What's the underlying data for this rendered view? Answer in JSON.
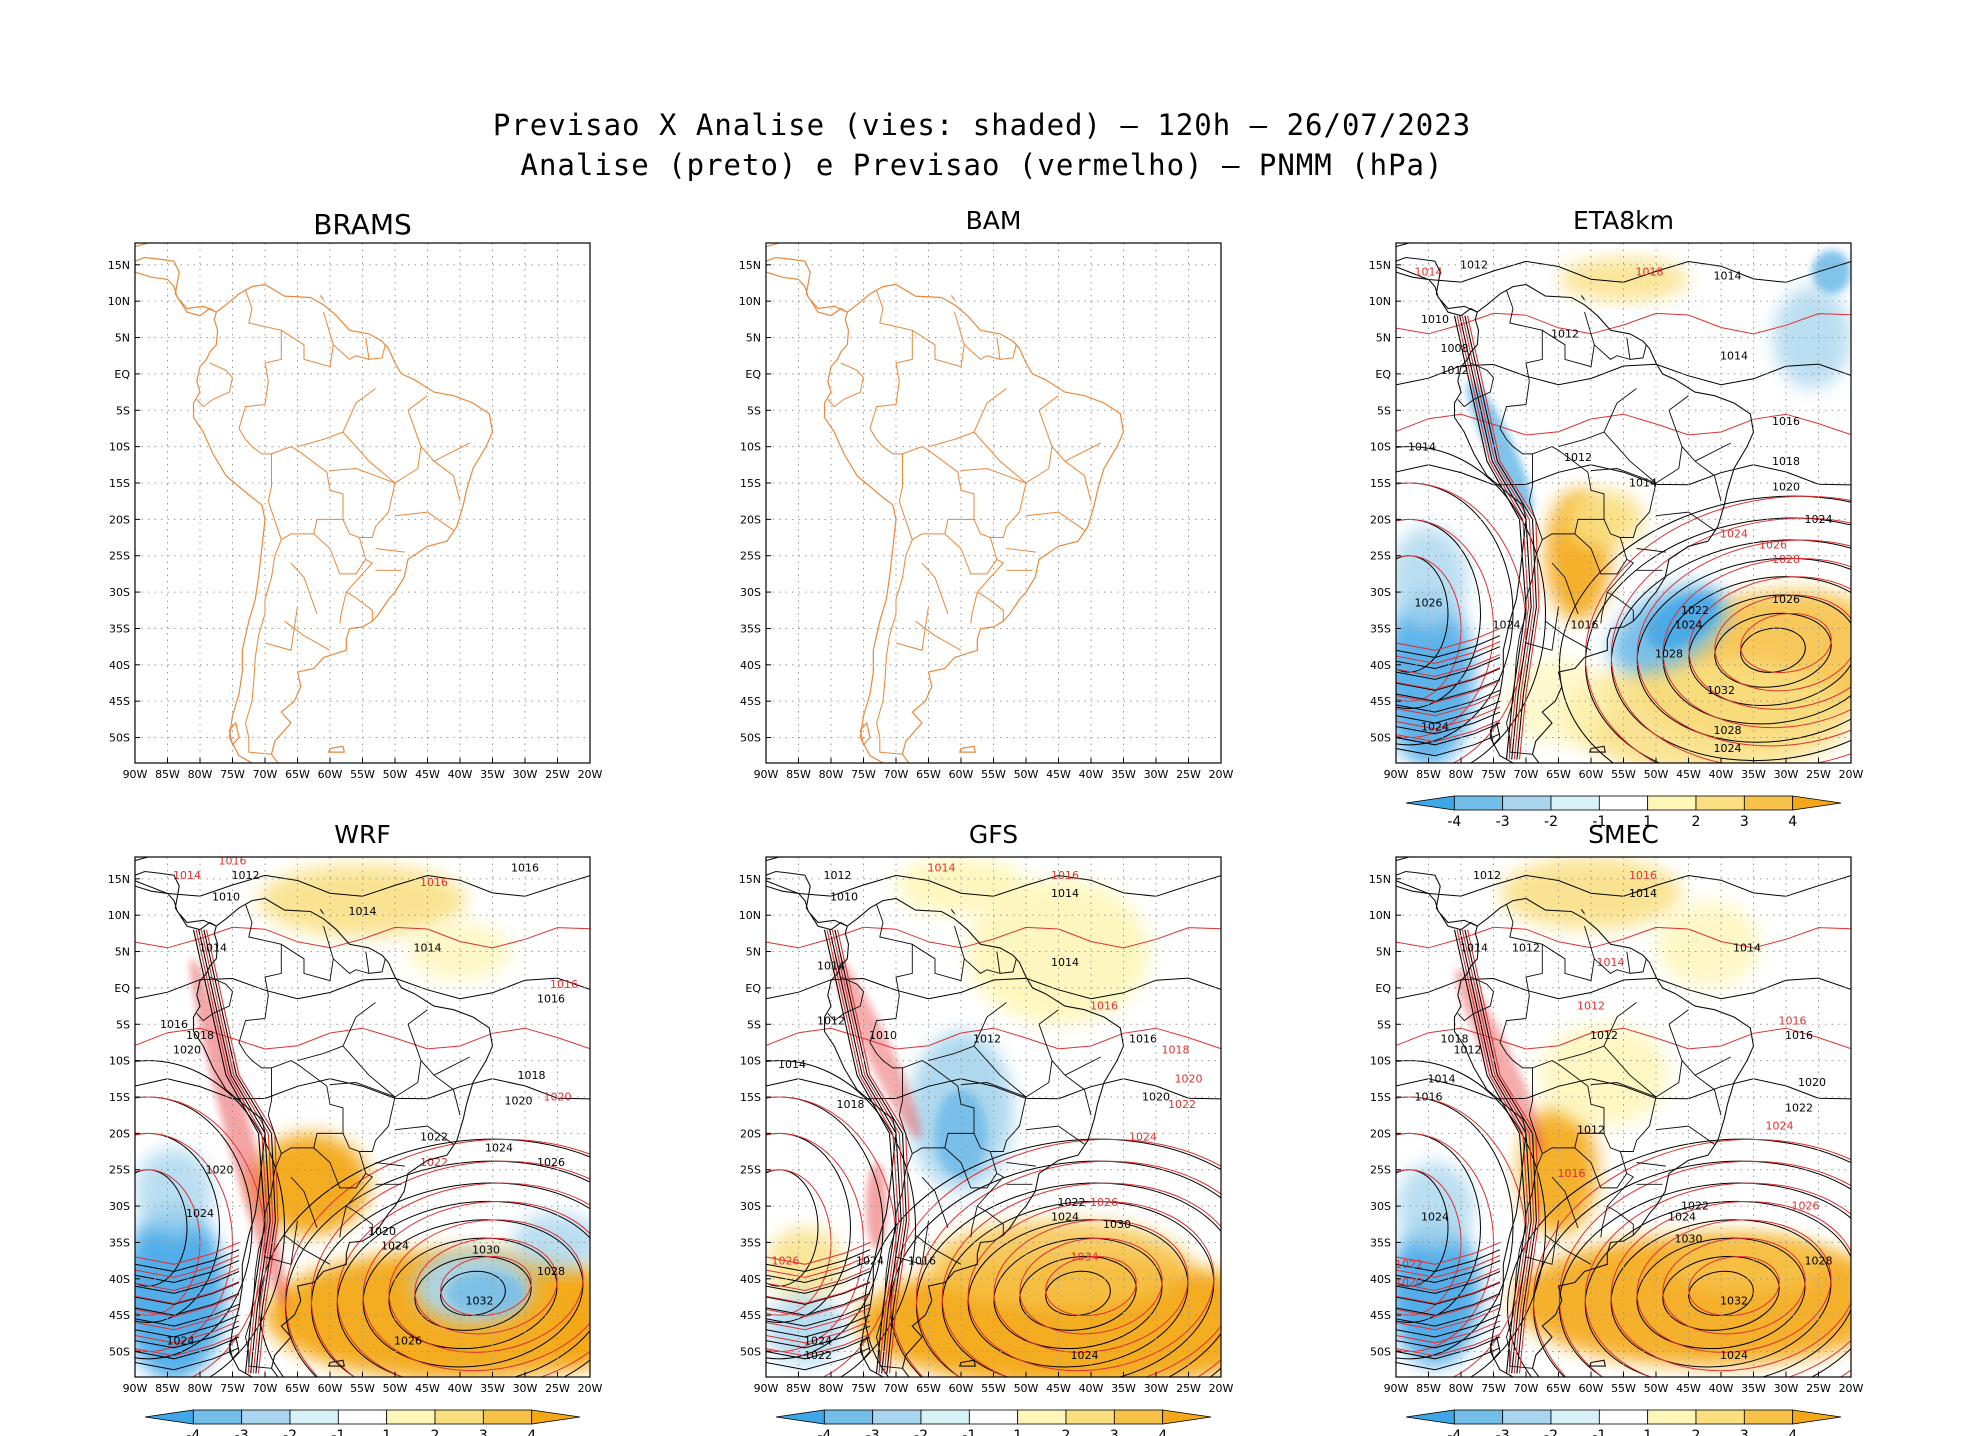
{
  "figure": {
    "title_line1": "Previsao X Analise (vies: shaded) — 120h — 26/07/2023",
    "title_line2": "Analise (preto) e Previsao (vermelho) — PNMM (hPa)"
  },
  "axes": {
    "lat_labels": [
      "15N",
      "10N",
      "5N",
      "EQ",
      "5S",
      "10S",
      "15S",
      "20S",
      "25S",
      "30S",
      "35S",
      "40S",
      "45S",
      "50S"
    ],
    "lon_labels": [
      "90W",
      "85W",
      "80W",
      "75W",
      "70W",
      "65W",
      "60W",
      "55W",
      "50W",
      "45W",
      "40W",
      "35W",
      "30W",
      "25W",
      "20W"
    ]
  },
  "colorbar": {
    "labels": [
      "-4",
      "-3",
      "-2",
      "-1",
      "1",
      "2",
      "3",
      "4"
    ],
    "colors": [
      "#3fa6e8",
      "#73bde9",
      "#a9d6ee",
      "#d7f1f6",
      "#ffffff",
      "#fdf6b8",
      "#f9df80",
      "#f7c24a",
      "#f4a818"
    ]
  },
  "colors": {
    "coast": "#e8893b",
    "analysis": "#000000",
    "forecast": "#e03030",
    "grid": "#999999"
  },
  "panels": [
    {
      "name": "BRAMS",
      "has_data": false,
      "labels": []
    },
    {
      "name": "BAM",
      "has_data": false,
      "labels": []
    },
    {
      "name": "ETA8km",
      "has_data": true,
      "labels": [
        {
          "t": "1012",
          "c": "k",
          "lon": -78,
          "lat": 14.5
        },
        {
          "t": "1014",
          "c": "r",
          "lon": -85,
          "lat": 13.5
        },
        {
          "t": "1018",
          "c": "r",
          "lon": -51,
          "lat": 13.5
        },
        {
          "t": "1014",
          "c": "k",
          "lon": -39,
          "lat": 13
        },
        {
          "t": "1010",
          "c": "k",
          "lon": -84,
          "lat": 7
        },
        {
          "t": "1012",
          "c": "k",
          "lon": -64,
          "lat": 5
        },
        {
          "t": "1008",
          "c": "k",
          "lon": -81,
          "lat": 3
        },
        {
          "t": "1012",
          "c": "k",
          "lon": -81,
          "lat": 0
        },
        {
          "t": "1014",
          "c": "k",
          "lon": -38,
          "lat": 2
        },
        {
          "t": "1014",
          "c": "k",
          "lon": -86,
          "lat": -10.5
        },
        {
          "t": "1016",
          "c": "k",
          "lon": -30,
          "lat": -7
        },
        {
          "t": "1012",
          "c": "k",
          "lon": -62,
          "lat": -12
        },
        {
          "t": "1018",
          "c": "k",
          "lon": -30,
          "lat": -12.5
        },
        {
          "t": "1014",
          "c": "k",
          "lon": -52,
          "lat": -15.5
        },
        {
          "t": "1020",
          "c": "k",
          "lon": -30,
          "lat": -16
        },
        {
          "t": "1024",
          "c": "k",
          "lon": -25,
          "lat": -20.5
        },
        {
          "t": "1024",
          "c": "r",
          "lon": -38,
          "lat": -22.5
        },
        {
          "t": "1026",
          "c": "r",
          "lon": -32,
          "lat": -24
        },
        {
          "t": "1028",
          "c": "r",
          "lon": -30,
          "lat": -26
        },
        {
          "t": "1026",
          "c": "k",
          "lon": -85,
          "lat": -32
        },
        {
          "t": "1024",
          "c": "k",
          "lon": -73,
          "lat": -35
        },
        {
          "t": "1016",
          "c": "k",
          "lon": -61,
          "lat": -35
        },
        {
          "t": "1022",
          "c": "k",
          "lon": -44,
          "lat": -33
        },
        {
          "t": "1024",
          "c": "k",
          "lon": -45,
          "lat": -35
        },
        {
          "t": "1026",
          "c": "k",
          "lon": -30,
          "lat": -31.5
        },
        {
          "t": "1028",
          "c": "k",
          "lon": -48,
          "lat": -39
        },
        {
          "t": "1032",
          "c": "k",
          "lon": -40,
          "lat": -44
        },
        {
          "t": "1028",
          "c": "k",
          "lon": -39,
          "lat": -49.5
        },
        {
          "t": "1024",
          "c": "k",
          "lon": -39,
          "lat": -52
        },
        {
          "t": "1024",
          "c": "k",
          "lon": -84,
          "lat": -49
        }
      ]
    },
    {
      "name": "WRF",
      "has_data": true,
      "labels": [
        {
          "t": "1012",
          "c": "k",
          "lon": -73,
          "lat": 15
        },
        {
          "t": "1014",
          "c": "r",
          "lon": -82,
          "lat": 15
        },
        {
          "t": "1016",
          "c": "r",
          "lon": -75,
          "lat": 17
        },
        {
          "t": "1016",
          "c": "k",
          "lon": -30,
          "lat": 16
        },
        {
          "t": "1016",
          "c": "r",
          "lon": -44,
          "lat": 14
        },
        {
          "t": "1010",
          "c": "k",
          "lon": -76,
          "lat": 12
        },
        {
          "t": "1014",
          "c": "k",
          "lon": -55,
          "lat": 10
        },
        {
          "t": "1014",
          "c": "k",
          "lon": -45,
          "lat": 5
        },
        {
          "t": "1014",
          "c": "k",
          "lon": -78,
          "lat": 5
        },
        {
          "t": "1016",
          "c": "r",
          "lon": -24,
          "lat": 0
        },
        {
          "t": "1016",
          "c": "k",
          "lon": -26,
          "lat": -2
        },
        {
          "t": "1016",
          "c": "k",
          "lon": -84,
          "lat": -5.5
        },
        {
          "t": "1018",
          "c": "k",
          "lon": -80,
          "lat": -7
        },
        {
          "t": "1020",
          "c": "k",
          "lon": -82,
          "lat": -9
        },
        {
          "t": "1018",
          "c": "k",
          "lon": -29,
          "lat": -12.5
        },
        {
          "t": "1020",
          "c": "k",
          "lon": -31,
          "lat": -16
        },
        {
          "t": "1020",
          "c": "r",
          "lon": -25,
          "lat": -15.5
        },
        {
          "t": "1022",
          "c": "k",
          "lon": -44,
          "lat": -21
        },
        {
          "t": "1024",
          "c": "k",
          "lon": -34,
          "lat": -22.5
        },
        {
          "t": "1026",
          "c": "k",
          "lon": -26,
          "lat": -24.5
        },
        {
          "t": "1022",
          "c": "r",
          "lon": -44,
          "lat": -24.5
        },
        {
          "t": "1020",
          "c": "k",
          "lon": -77,
          "lat": -25.5
        },
        {
          "t": "1024",
          "c": "k",
          "lon": -80,
          "lat": -31.5
        },
        {
          "t": "1020",
          "c": "k",
          "lon": -52,
          "lat": -34
        },
        {
          "t": "1024",
          "c": "k",
          "lon": -50,
          "lat": -36
        },
        {
          "t": "1030",
          "c": "k",
          "lon": -36,
          "lat": -36.5
        },
        {
          "t": "1028",
          "c": "k",
          "lon": -26,
          "lat": -39.5
        },
        {
          "t": "1032",
          "c": "k",
          "lon": -37,
          "lat": -43.5
        },
        {
          "t": "1026",
          "c": "k",
          "lon": -48,
          "lat": -49
        },
        {
          "t": "1024",
          "c": "k",
          "lon": -83,
          "lat": -49
        }
      ]
    },
    {
      "name": "GFS",
      "has_data": true,
      "labels": [
        {
          "t": "1012",
          "c": "k",
          "lon": -79,
          "lat": 15
        },
        {
          "t": "1010",
          "c": "k",
          "lon": -78,
          "lat": 12
        },
        {
          "t": "1014",
          "c": "r",
          "lon": -63,
          "lat": 16
        },
        {
          "t": "1016",
          "c": "r",
          "lon": -44,
          "lat": 15
        },
        {
          "t": "1014",
          "c": "k",
          "lon": -44,
          "lat": 12.5
        },
        {
          "t": "1014",
          "c": "k",
          "lon": -44,
          "lat": 3
        },
        {
          "t": "1014",
          "c": "k",
          "lon": -80,
          "lat": 2.5
        },
        {
          "t": "1012",
          "c": "k",
          "lon": -80,
          "lat": -5
        },
        {
          "t": "1010",
          "c": "k",
          "lon": -72,
          "lat": -7
        },
        {
          "t": "1012",
          "c": "k",
          "lon": -56,
          "lat": -7.5
        },
        {
          "t": "1016",
          "c": "r",
          "lon": -38,
          "lat": -3
        },
        {
          "t": "1016",
          "c": "k",
          "lon": -32,
          "lat": -7.5
        },
        {
          "t": "1018",
          "c": "r",
          "lon": -27,
          "lat": -9
        },
        {
          "t": "1014",
          "c": "k",
          "lon": -86,
          "lat": -11
        },
        {
          "t": "1020",
          "c": "r",
          "lon": -25,
          "lat": -13
        },
        {
          "t": "1020",
          "c": "k",
          "lon": -30,
          "lat": -15.5
        },
        {
          "t": "1022",
          "c": "r",
          "lon": -26,
          "lat": -16.5
        },
        {
          "t": "1024",
          "c": "r",
          "lon": -32,
          "lat": -21
        },
        {
          "t": "1018",
          "c": "k",
          "lon": -77,
          "lat": -16.5
        },
        {
          "t": "1022",
          "c": "k",
          "lon": -43,
          "lat": -30
        },
        {
          "t": "1024",
          "c": "k",
          "lon": -44,
          "lat": -32
        },
        {
          "t": "1026",
          "c": "r",
          "lon": -38,
          "lat": -30
        },
        {
          "t": "1030",
          "c": "k",
          "lon": -36,
          "lat": -33
        },
        {
          "t": "1026",
          "c": "r",
          "lon": -87,
          "lat": -38
        },
        {
          "t": "1024",
          "c": "k",
          "lon": -74,
          "lat": -38
        },
        {
          "t": "1016",
          "c": "k",
          "lon": -66,
          "lat": -38
        },
        {
          "t": "1034",
          "c": "r",
          "lon": -41,
          "lat": -37.5
        },
        {
          "t": "1024",
          "c": "k",
          "lon": -41,
          "lat": -51
        },
        {
          "t": "1024",
          "c": "k",
          "lon": -82,
          "lat": -49
        },
        {
          "t": "1022",
          "c": "k",
          "lon": -82,
          "lat": -51
        }
      ]
    },
    {
      "name": "SMEC",
      "has_data": true,
      "labels": [
        {
          "t": "1012",
          "c": "k",
          "lon": -76,
          "lat": 15
        },
        {
          "t": "1016",
          "c": "r",
          "lon": -52,
          "lat": 15
        },
        {
          "t": "1014",
          "c": "k",
          "lon": -52,
          "lat": 12.5
        },
        {
          "t": "1014",
          "c": "k",
          "lon": -78,
          "lat": 5
        },
        {
          "t": "1012",
          "c": "k",
          "lon": -70,
          "lat": 5
        },
        {
          "t": "1014",
          "c": "k",
          "lon": -36,
          "lat": 5
        },
        {
          "t": "1014",
          "c": "r",
          "lon": -57,
          "lat": 3
        },
        {
          "t": "1012",
          "c": "r",
          "lon": -60,
          "lat": -3
        },
        {
          "t": "1016",
          "c": "r",
          "lon": -29,
          "lat": -5
        },
        {
          "t": "1016",
          "c": "k",
          "lon": -28,
          "lat": -7
        },
        {
          "t": "1018",
          "c": "k",
          "lon": -81,
          "lat": -7.5
        },
        {
          "t": "1012",
          "c": "k",
          "lon": -79,
          "lat": -9
        },
        {
          "t": "1012",
          "c": "k",
          "lon": -58,
          "lat": -7
        },
        {
          "t": "1014",
          "c": "k",
          "lon": -83,
          "lat": -13
        },
        {
          "t": "1016",
          "c": "k",
          "lon": -85,
          "lat": -15.5
        },
        {
          "t": "1020",
          "c": "k",
          "lon": -26,
          "lat": -13.5
        },
        {
          "t": "1022",
          "c": "k",
          "lon": -28,
          "lat": -17
        },
        {
          "t": "1024",
          "c": "r",
          "lon": -31,
          "lat": -19.5
        },
        {
          "t": "1012",
          "c": "k",
          "lon": -60,
          "lat": -20
        },
        {
          "t": "1016",
          "c": "r",
          "lon": -63,
          "lat": -26
        },
        {
          "t": "1026",
          "c": "r",
          "lon": -27,
          "lat": -30.5
        },
        {
          "t": "1022",
          "c": "k",
          "lon": -44,
          "lat": -30.5
        },
        {
          "t": "1024",
          "c": "k",
          "lon": -46,
          "lat": -32
        },
        {
          "t": "1030",
          "c": "k",
          "lon": -45,
          "lat": -35
        },
        {
          "t": "1028",
          "c": "k",
          "lon": -25,
          "lat": -38
        },
        {
          "t": "1032",
          "c": "k",
          "lon": -38,
          "lat": -43.5
        },
        {
          "t": "1024",
          "c": "k",
          "lon": -84,
          "lat": -32
        },
        {
          "t": "1020",
          "c": "r",
          "lon": -88,
          "lat": -41
        },
        {
          "t": "1022",
          "c": "r",
          "lon": -88,
          "lat": -38.5
        },
        {
          "t": "1024",
          "c": "k",
          "lon": -38,
          "lat": -51
        }
      ]
    }
  ]
}
